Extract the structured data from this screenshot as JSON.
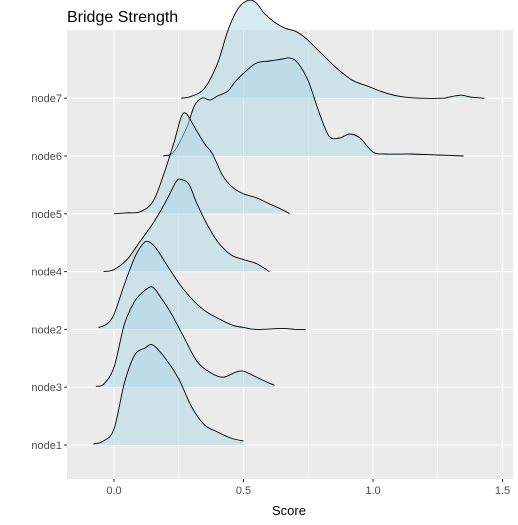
{
  "chart_data": {
    "type": "ridgeline",
    "title": "Bridge Strength",
    "xlabel": "Score",
    "ylabel": "",
    "xlim": [
      -0.18,
      1.53
    ],
    "x_ticks": [
      0.0,
      0.5,
      1.0,
      1.5
    ],
    "x_tick_labels": [
      "0.0",
      "0.5",
      "1.0",
      "1.5"
    ],
    "fill_color": "#add8e6",
    "fill_alpha": 0.5,
    "panel_color": "#ebebeb",
    "grid_color": "#ffffff",
    "grid": true,
    "categories": [
      "node1",
      "node3",
      "node2",
      "node4",
      "node5",
      "node6",
      "node7"
    ],
    "series": [
      {
        "name": "node1",
        "points": [
          [
            -0.08,
            0.01
          ],
          [
            -0.04,
            0.04
          ],
          [
            0.0,
            0.16
          ],
          [
            0.04,
            0.62
          ],
          [
            0.08,
            0.9
          ],
          [
            0.12,
            0.97
          ],
          [
            0.15,
            1.0
          ],
          [
            0.2,
            0.86
          ],
          [
            0.25,
            0.66
          ],
          [
            0.3,
            0.38
          ],
          [
            0.35,
            0.2
          ],
          [
            0.4,
            0.13
          ],
          [
            0.45,
            0.07
          ],
          [
            0.5,
            0.04
          ]
        ]
      },
      {
        "name": "node3",
        "points": [
          [
            -0.07,
            0.01
          ],
          [
            -0.04,
            0.03
          ],
          [
            0.0,
            0.2
          ],
          [
            0.04,
            0.63
          ],
          [
            0.08,
            0.86
          ],
          [
            0.12,
            0.97
          ],
          [
            0.15,
            1.0
          ],
          [
            0.18,
            0.9
          ],
          [
            0.22,
            0.74
          ],
          [
            0.27,
            0.5
          ],
          [
            0.32,
            0.26
          ],
          [
            0.37,
            0.15
          ],
          [
            0.42,
            0.1
          ],
          [
            0.47,
            0.15
          ],
          [
            0.5,
            0.16
          ],
          [
            0.55,
            0.1
          ],
          [
            0.6,
            0.04
          ],
          [
            0.62,
            0.02
          ]
        ]
      },
      {
        "name": "node2",
        "points": [
          [
            -0.06,
            0.02
          ],
          [
            -0.03,
            0.05
          ],
          [
            0.0,
            0.15
          ],
          [
            0.04,
            0.45
          ],
          [
            0.08,
            0.72
          ],
          [
            0.11,
            0.85
          ],
          [
            0.13,
            0.88
          ],
          [
            0.16,
            0.82
          ],
          [
            0.21,
            0.62
          ],
          [
            0.26,
            0.43
          ],
          [
            0.31,
            0.28
          ],
          [
            0.36,
            0.17
          ],
          [
            0.41,
            0.1
          ],
          [
            0.46,
            0.04
          ],
          [
            0.5,
            0.02
          ],
          [
            0.55,
            0.0
          ],
          [
            0.65,
            0.01
          ],
          [
            0.7,
            0.0
          ],
          [
            0.74,
            0.0
          ]
        ]
      },
      {
        "name": "node4",
        "points": [
          [
            -0.04,
            0.0
          ],
          [
            0.0,
            0.02
          ],
          [
            0.05,
            0.12
          ],
          [
            0.1,
            0.3
          ],
          [
            0.15,
            0.48
          ],
          [
            0.2,
            0.7
          ],
          [
            0.24,
            0.9
          ],
          [
            0.26,
            0.92
          ],
          [
            0.29,
            0.87
          ],
          [
            0.32,
            0.68
          ],
          [
            0.36,
            0.47
          ],
          [
            0.4,
            0.3
          ],
          [
            0.45,
            0.17
          ],
          [
            0.5,
            0.12
          ],
          [
            0.55,
            0.08
          ],
          [
            0.6,
            0.0
          ]
        ]
      },
      {
        "name": "node5",
        "points": [
          [
            0.0,
            0.0
          ],
          [
            0.05,
            0.01
          ],
          [
            0.1,
            0.02
          ],
          [
            0.15,
            0.12
          ],
          [
            0.19,
            0.38
          ],
          [
            0.23,
            0.7
          ],
          [
            0.26,
            0.97
          ],
          [
            0.28,
            1.0
          ],
          [
            0.31,
            0.87
          ],
          [
            0.35,
            0.7
          ],
          [
            0.38,
            0.6
          ],
          [
            0.42,
            0.38
          ],
          [
            0.46,
            0.26
          ],
          [
            0.5,
            0.2
          ],
          [
            0.55,
            0.16
          ],
          [
            0.6,
            0.1
          ],
          [
            0.65,
            0.04
          ],
          [
            0.68,
            0.0
          ]
        ]
      },
      {
        "name": "node6",
        "points": [
          [
            0.19,
            0.0
          ],
          [
            0.23,
            0.04
          ],
          [
            0.28,
            0.28
          ],
          [
            0.31,
            0.5
          ],
          [
            0.34,
            0.58
          ],
          [
            0.37,
            0.56
          ],
          [
            0.4,
            0.6
          ],
          [
            0.44,
            0.65
          ],
          [
            0.47,
            0.75
          ],
          [
            0.51,
            0.85
          ],
          [
            0.55,
            0.93
          ],
          [
            0.6,
            0.95
          ],
          [
            0.65,
            0.97
          ],
          [
            0.68,
            0.98
          ],
          [
            0.71,
            0.93
          ],
          [
            0.75,
            0.75
          ],
          [
            0.79,
            0.45
          ],
          [
            0.83,
            0.2
          ],
          [
            0.87,
            0.18
          ],
          [
            0.91,
            0.22
          ],
          [
            0.95,
            0.18
          ],
          [
            1.0,
            0.04
          ],
          [
            1.05,
            0.02
          ],
          [
            1.15,
            0.02
          ],
          [
            1.25,
            0.01
          ],
          [
            1.35,
            0.0
          ]
        ]
      },
      {
        "name": "node7",
        "points": [
          [
            0.26,
            0.0
          ],
          [
            0.3,
            0.02
          ],
          [
            0.35,
            0.1
          ],
          [
            0.4,
            0.35
          ],
          [
            0.44,
            0.68
          ],
          [
            0.48,
            0.9
          ],
          [
            0.52,
            0.98
          ],
          [
            0.55,
            0.95
          ],
          [
            0.58,
            0.85
          ],
          [
            0.62,
            0.76
          ],
          [
            0.66,
            0.7
          ],
          [
            0.7,
            0.67
          ],
          [
            0.74,
            0.6
          ],
          [
            0.8,
            0.45
          ],
          [
            0.86,
            0.3
          ],
          [
            0.92,
            0.18
          ],
          [
            0.98,
            0.12
          ],
          [
            1.04,
            0.06
          ],
          [
            1.1,
            0.02
          ],
          [
            1.18,
            0.0
          ],
          [
            1.27,
            0.0
          ],
          [
            1.29,
            0.01
          ],
          [
            1.34,
            0.03
          ],
          [
            1.38,
            0.01
          ],
          [
            1.43,
            0.0
          ]
        ]
      }
    ]
  }
}
